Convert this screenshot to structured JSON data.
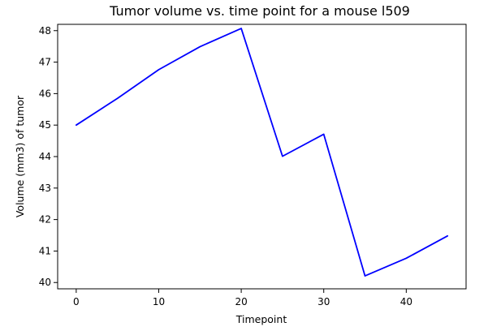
{
  "chart_data": {
    "type": "line",
    "title": "Tumor volume vs. time point for a mouse l509",
    "xlabel": "Timepoint",
    "ylabel": "Volume (mm3) of tumor",
    "xlim": [
      -2.25,
      47.25
    ],
    "ylim": [
      39.8,
      48.2
    ],
    "xticks": [
      0,
      10,
      20,
      30,
      40
    ],
    "yticks": [
      40,
      41,
      42,
      43,
      44,
      45,
      46,
      47,
      48
    ],
    "grid": false,
    "legend": "none",
    "series": [
      {
        "color": "#0000ff",
        "x": [
          0,
          5,
          10,
          15,
          20,
          25,
          30,
          35,
          40,
          45
        ],
        "y": [
          45.0,
          45.85,
          46.76,
          47.49,
          48.07,
          44.01,
          44.71,
          40.21,
          40.77,
          41.48
        ]
      }
    ]
  }
}
